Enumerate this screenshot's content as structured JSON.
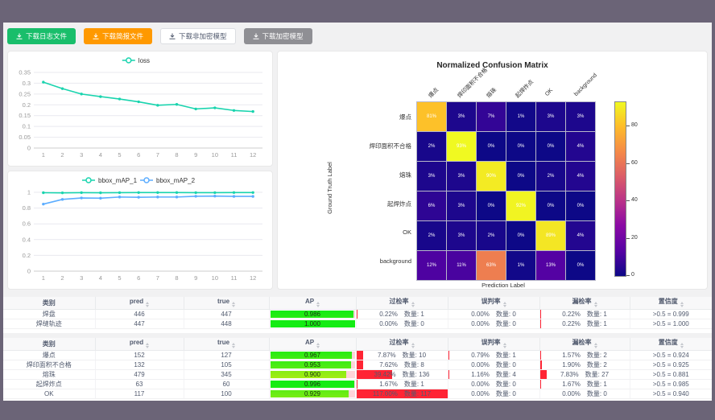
{
  "colors": {
    "frame": "#6b6477",
    "content_bg": "#f1f1f2",
    "btn_success": "#19be6b",
    "btn_warning": "#ff9900",
    "btn_gray": "#8f8f94",
    "loss_line": "#19d4ae",
    "map1_line": "#19d4ae",
    "map2_line": "#5cadff",
    "rate_bar_red": "#ff2434",
    "ap_remainder_pink": "#ffd3da"
  },
  "toolbar": {
    "buttons": [
      {
        "label": "下载日志文件",
        "style": "success"
      },
      {
        "label": "下载简报文件",
        "style": "warning"
      },
      {
        "label": "下载非加密模型",
        "style": "default"
      },
      {
        "label": "下载加密模型",
        "style": "gray"
      }
    ]
  },
  "chart_data": [
    {
      "type": "line",
      "title": "",
      "legend": [
        "loss"
      ],
      "legend_position": "top-center",
      "x": [
        1,
        2,
        3,
        4,
        5,
        6,
        7,
        8,
        9,
        10,
        11,
        12
      ],
      "series": [
        {
          "name": "loss",
          "color": "#19d4ae",
          "values": [
            0.305,
            0.275,
            0.25,
            0.238,
            0.227,
            0.214,
            0.198,
            0.202,
            0.181,
            0.186,
            0.174,
            0.169
          ]
        }
      ],
      "ylim": [
        0,
        0.35
      ],
      "yticks": [
        0,
        0.05,
        0.1,
        0.15,
        0.2,
        0.25,
        0.3,
        0.35
      ],
      "grid": true
    },
    {
      "type": "line",
      "title": "",
      "legend": [
        "bbox_mAP_1",
        "bbox_mAP_2"
      ],
      "legend_position": "top-center",
      "x": [
        1,
        2,
        3,
        4,
        5,
        6,
        7,
        8,
        9,
        10,
        11,
        12
      ],
      "series": [
        {
          "name": "bbox_mAP_1",
          "color": "#19d4ae",
          "values": [
            0.995,
            0.993,
            0.996,
            0.994,
            0.996,
            0.997,
            0.997,
            0.997,
            0.996,
            0.996,
            0.997,
            0.997
          ]
        },
        {
          "name": "bbox_mAP_2",
          "color": "#5cadff",
          "values": [
            0.85,
            0.91,
            0.928,
            0.925,
            0.94,
            0.937,
            0.94,
            0.94,
            0.95,
            0.952,
            0.948,
            0.948
          ]
        }
      ],
      "ylim": [
        0,
        1
      ],
      "yticks": [
        0,
        0.2,
        0.4,
        0.6,
        0.8,
        1
      ],
      "grid": true
    },
    {
      "type": "heatmap",
      "title": "Normalized Confusion Matrix",
      "xlabel": "Prediction Label",
      "ylabel": "Ground Truth Label",
      "labels": [
        "爆点",
        "焊印面积不合格",
        "熔珠",
        "起焊炸点",
        "OK",
        "background"
      ],
      "matrix": [
        [
          81,
          3,
          7,
          1,
          3,
          3
        ],
        [
          2,
          93,
          0,
          0,
          0,
          4
        ],
        [
          3,
          3,
          90,
          0,
          2,
          4
        ],
        [
          6,
          3,
          0,
          92,
          0,
          0
        ],
        [
          2,
          3,
          2,
          0,
          89,
          4
        ],
        [
          12,
          11,
          63,
          1,
          13,
          0
        ]
      ],
      "unit": "%",
      "vmax": 93,
      "colorbar_ticks": [
        0,
        20,
        40,
        60,
        80
      ],
      "colormap": "plasma"
    }
  ],
  "tables": {
    "count_label": "数量:",
    "headers": [
      {
        "label": "类别",
        "sortable": false
      },
      {
        "label": "pred",
        "sortable": true
      },
      {
        "label": "true",
        "sortable": true
      },
      {
        "label": "AP",
        "sortable": true
      },
      {
        "label": "过检率",
        "sortable": true
      },
      {
        "label": "误判率",
        "sortable": true
      },
      {
        "label": "漏检率",
        "sortable": true
      },
      {
        "label": "置信度",
        "sortable": true
      }
    ],
    "table1": {
      "rows": [
        {
          "name": "焊盘",
          "pred": "446",
          "truth": "447",
          "ap": "0.986",
          "over": {
            "pct": "0.22%",
            "count": "1"
          },
          "mis": {
            "pct": "0.00%",
            "count": "0"
          },
          "miss": {
            "pct": "0.22%",
            "count": "1"
          },
          "conf": ">0.5 = 0.999"
        },
        {
          "name": "焊缝轨迹",
          "pred": "447",
          "truth": "448",
          "ap": "1.000",
          "over": {
            "pct": "0.00%",
            "count": "0"
          },
          "mis": {
            "pct": "0.00%",
            "count": "0"
          },
          "miss": {
            "pct": "0.22%",
            "count": "1"
          },
          "conf": ">0.5 = 1.000"
        }
      ]
    },
    "table2": {
      "rows": [
        {
          "name": "爆点",
          "pred": "152",
          "truth": "127",
          "ap": "0.967",
          "over": {
            "pct": "7.87%",
            "count": "10"
          },
          "mis": {
            "pct": "0.79%",
            "count": "1"
          },
          "miss": {
            "pct": "1.57%",
            "count": "2"
          },
          "conf": ">0.5 = 0.924"
        },
        {
          "name": "焊印面积不合格",
          "pred": "132",
          "truth": "105",
          "ap": "0.953",
          "over": {
            "pct": "7.62%",
            "count": "8"
          },
          "mis": {
            "pct": "0.00%",
            "count": "0"
          },
          "miss": {
            "pct": "1.90%",
            "count": "2"
          },
          "conf": ">0.5 = 0.925"
        },
        {
          "name": "熔珠",
          "pred": "479",
          "truth": "345",
          "ap": "0.900",
          "over": {
            "pct": "39.42%",
            "count": "136"
          },
          "mis": {
            "pct": "1.16%",
            "count": "4"
          },
          "miss": {
            "pct": "7.83%",
            "count": "27"
          },
          "conf": ">0.5 = 0.881"
        },
        {
          "name": "起焊炸点",
          "pred": "63",
          "truth": "60",
          "ap": "0.996",
          "over": {
            "pct": "1.67%",
            "count": "1"
          },
          "mis": {
            "pct": "0.00%",
            "count": "0"
          },
          "miss": {
            "pct": "1.67%",
            "count": "1"
          },
          "conf": ">0.5 = 0.985"
        },
        {
          "name": "OK",
          "pred": "117",
          "truth": "100",
          "ap": "0.929",
          "over": {
            "pct": "117.00%",
            "count": "117"
          },
          "mis": {
            "pct": "0.00%",
            "count": "0"
          },
          "miss": {
            "pct": "0.00%",
            "count": "0"
          },
          "conf": ">0.5 = 0.940"
        }
      ]
    }
  }
}
